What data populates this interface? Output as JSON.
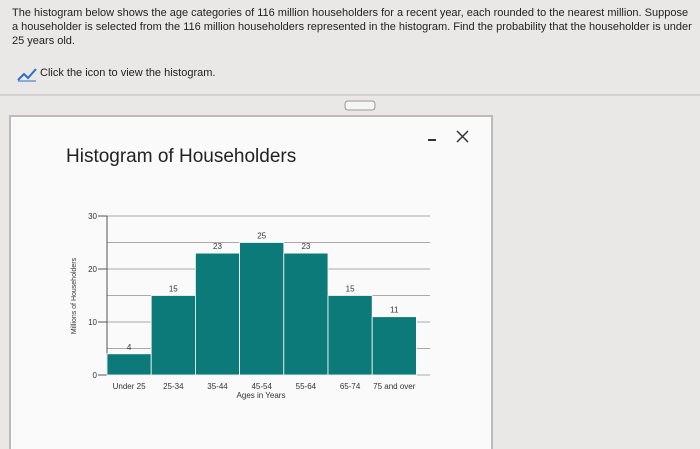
{
  "question": {
    "text": "The histogram below shows the age categories of 116 million householders for a recent year, each rounded to the nearest million. Suppose a householder is selected from the 116 million householders represented in the histogram. Find the probability that the householder is under 25 years old."
  },
  "link": "Click the icon to view the histogram.",
  "chart_data": {
    "type": "bar",
    "title": "Histogram of Householders",
    "x_label": "Ages in Years",
    "y_label": "Millions of Householders",
    "categories": [
      "Under 25",
      "25-34",
      "35-44",
      "45-54",
      "55-64",
      "65-74",
      "75 and over"
    ],
    "values": [
      4,
      15,
      23,
      25,
      23,
      15,
      11
    ],
    "color": "#0b7a78",
    "ylim": [
      0,
      30
    ],
    "yticks": [
      0,
      10,
      20,
      30
    ],
    "minor_yticks": [
      5,
      15,
      25
    ],
    "grid": true
  }
}
